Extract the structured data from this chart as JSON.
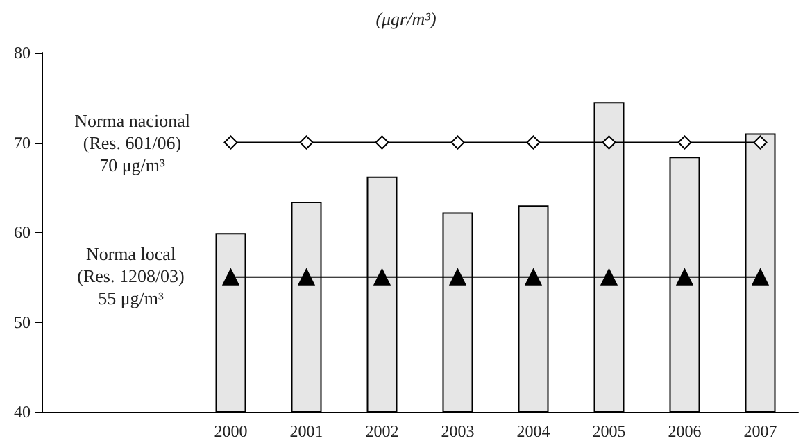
{
  "chart_data": {
    "type": "bar",
    "title": "(μgr/m³)",
    "categories": [
      null,
      null,
      "2000",
      "2001",
      "2002",
      "2003",
      "2004",
      "2005",
      "2006",
      "2007"
    ],
    "series": [
      {
        "color": "#e6e6e6",
        "values": [
          null,
          null,
          59.9,
          63.4,
          66.2,
          62.2,
          63.0,
          74.5,
          68.4,
          71.0
        ]
      },
      {
        "type": "line",
        "name": "Norma nacional\n(Res. 601/06)\n70 μg/m³",
        "color": "#000000",
        "marker": "diamond",
        "values": [
          null,
          null,
          70,
          70,
          70,
          70,
          70,
          70,
          70,
          70
        ]
      },
      {
        "type": "line",
        "name": "Norma local\n(Res. 1208/03)\n55 μg/m³",
        "color": "#000000",
        "marker": "triangle",
        "values": [
          null,
          null,
          55,
          55,
          55,
          55,
          55,
          55,
          55,
          55
        ]
      }
    ],
    "ylim": [
      40,
      80
    ],
    "yticks": [
      40,
      50,
      60,
      70,
      80
    ],
    "grid": false,
    "legend": "left",
    "line_style": "solid"
  }
}
